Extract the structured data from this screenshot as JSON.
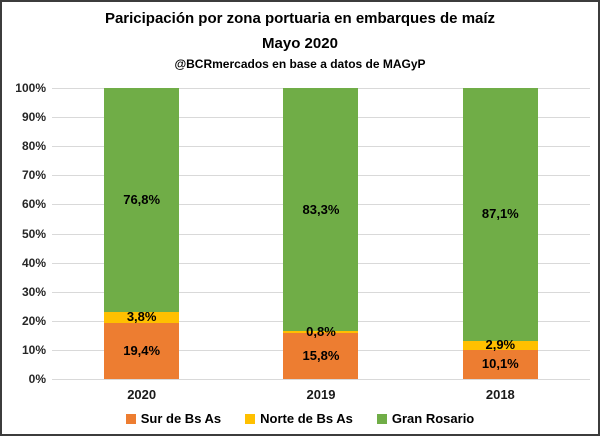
{
  "colors": {
    "sur_de_bs_as": "#ED7D31",
    "norte_de_bs_as": "#FFC000",
    "gran_rosario": "#70AD47",
    "gridline": "#D9D9D9",
    "frame_border": "#3C3C3C",
    "text": "#000000"
  },
  "chart_data": {
    "type": "bar",
    "stacked": true,
    "title": "Paricipación por zona portuaria en embarques de maíz",
    "subtitle": "Mayo 2020",
    "source": "@BCRmercados en base a datos de MAGyP",
    "categories": [
      "2020",
      "2019",
      "2018"
    ],
    "series": [
      {
        "name": "Sur de Bs As",
        "color": "#ED7D31",
        "values": [
          19.4,
          15.8,
          10.1
        ],
        "labels": [
          "19,4%",
          "15,8%",
          "10,1%"
        ]
      },
      {
        "name": "Norte de Bs As",
        "color": "#FFC000",
        "values": [
          3.8,
          0.8,
          2.9
        ],
        "labels": [
          "3,8%",
          "0,8%",
          "2,9%"
        ]
      },
      {
        "name": "Gran Rosario",
        "color": "#70AD47",
        "values": [
          76.8,
          83.3,
          87.1
        ],
        "labels": [
          "76,8%",
          "83,3%",
          "87,1%"
        ]
      }
    ],
    "ylabel": "",
    "xlabel": "",
    "ylim": [
      0,
      100
    ],
    "yticks": [
      "0%",
      "10%",
      "20%",
      "30%",
      "40%",
      "50%",
      "60%",
      "70%",
      "80%",
      "90%",
      "100%"
    ],
    "grid": true,
    "legend_position": "bottom"
  }
}
